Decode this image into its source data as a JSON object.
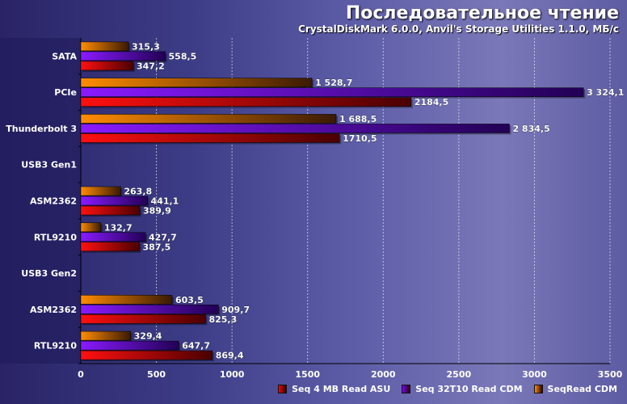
{
  "chart_data": {
    "type": "bar",
    "orientation": "horizontal",
    "title": "Последовательное чтение",
    "subtitle": "CrystalDiskMark 6.0.0, Anvil's Storage Utilities 1.1.0, МБ/с",
    "categories": [
      "SATA",
      "PCIe",
      "Thunderbolt 3",
      "USB3 Gen1",
      "ASM2362",
      "RTL9210",
      "USB3 Gen2",
      "ASM2362",
      "RTL9210"
    ],
    "series": [
      {
        "name": "SeqRead CDM",
        "color": "#ff8c00",
        "values": [
          315.3,
          1528.7,
          1688.5,
          null,
          263.8,
          132.7,
          null,
          603.5,
          329.4
        ],
        "labels": [
          "315,3",
          "1 528,7",
          "1 688,5",
          "",
          "263,8",
          "132,7",
          "",
          "603,5",
          "329,4"
        ]
      },
      {
        "name": "Seq 32T10 Read CDM",
        "color": "#7b00ff",
        "values": [
          558.5,
          3324.1,
          2834.5,
          null,
          441.1,
          427.7,
          null,
          909.7,
          647.7
        ],
        "labels": [
          "558,5",
          "3 324,1",
          "2 834,5",
          "",
          "441,1",
          "427,7",
          "",
          "909,7",
          "647,7"
        ]
      },
      {
        "name": "Seq 4 MB Read ASU",
        "color": "#ff0000",
        "values": [
          347.2,
          2184.5,
          1710.5,
          null,
          389.9,
          387.5,
          null,
          825.3,
          869.4
        ],
        "labels": [
          "347,2",
          "2184,5",
          "1710,5",
          "",
          "389,9",
          "387,5",
          "",
          "825,3",
          "869,4"
        ]
      }
    ],
    "xlim": [
      0,
      3500
    ],
    "xticks": [
      "0",
      "500",
      "1000",
      "1500",
      "2000",
      "2500",
      "3000",
      "3500"
    ],
    "grid": true,
    "legend_position": "bottom-right"
  },
  "legend_order": [
    "Seq 4 MB Read ASU",
    "Seq 32T10 Read CDM",
    "SeqRead CDM"
  ]
}
